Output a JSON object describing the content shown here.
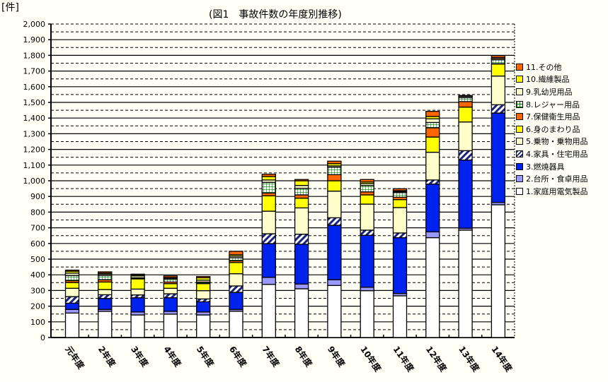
{
  "chart_data": {
    "type": "bar",
    "stacked": true,
    "title": "(図1　事故件数の年度別推移)",
    "ylabel": "[件]",
    "xlabel": "",
    "ylim": [
      0,
      2000
    ],
    "yticks": [
      "0",
      "100",
      "200",
      "300",
      "400",
      "500",
      "600",
      "700",
      "800",
      "900",
      "1,000",
      "1,100",
      "1,200",
      "1,300",
      "1,400",
      "1,500",
      "1,600",
      "1,700",
      "1,800",
      "1,900",
      "2,000"
    ],
    "grid": true,
    "legend_position": "right",
    "categories": [
      "元年度",
      "2年度",
      "3年度",
      "4年度",
      "5年度",
      "6年度",
      "7年度",
      "8年度",
      "9年度",
      "10年度",
      "11年度",
      "12年度",
      "13年度",
      "14年度"
    ],
    "series": [
      {
        "name": "1.家庭用電気製品",
        "color": "#ffffff",
        "pattern": "solid",
        "values": [
          156,
          167,
          144,
          149,
          144,
          168,
          339,
          311,
          332,
          299,
          266,
          637,
          685,
          847
        ]
      },
      {
        "name": "2.台所・食卓用品",
        "color": "#9999ff",
        "pattern": "solid",
        "values": [
          23,
          12,
          19,
          18,
          19,
          11,
          45,
          30,
          37,
          22,
          15,
          37,
          12,
          15
        ]
      },
      {
        "name": "3.燃焼器具",
        "color": "#0022ee",
        "pattern": "solid",
        "values": [
          40,
          70,
          91,
          87,
          65,
          109,
          215,
          254,
          347,
          331,
          356,
          305,
          435,
          570
        ]
      },
      {
        "name": "4.家具・住宅用品",
        "color": "#1a237e",
        "pattern": "hatch",
        "values": [
          42,
          24,
          18,
          25,
          18,
          41,
          63,
          64,
          48,
          33,
          30,
          26,
          60,
          53
        ]
      },
      {
        "name": "5.乗物・乗物用品",
        "color": "#ffffcc",
        "pattern": "solid",
        "values": [
          53,
          33,
          37,
          35,
          53,
          78,
          144,
          168,
          170,
          166,
          162,
          177,
          183,
          183
        ]
      },
      {
        "name": "6.身のまわり品",
        "color": "#ffff00",
        "pattern": "solid",
        "values": [
          37,
          48,
          65,
          30,
          45,
          72,
          98,
          62,
          66,
          59,
          51,
          97,
          95,
          77
        ]
      },
      {
        "name": "7.保健衛生用品",
        "color": "#ff6600",
        "pattern": "solid",
        "values": [
          12,
          15,
          3,
          10,
          2,
          11,
          18,
          21,
          39,
          19,
          15,
          59,
          35,
          2
        ]
      },
      {
        "name": "8.レジャー用品",
        "color": "#008000",
        "pattern": "grid",
        "values": [
          33,
          27,
          4,
          20,
          8,
          19,
          68,
          42,
          48,
          41,
          30,
          34,
          25,
          25
        ]
      },
      {
        "name": "9.乳幼児用品",
        "color": "#ffffcc",
        "pattern": "solid",
        "values": [
          15,
          8,
          12,
          4,
          12,
          10,
          15,
          18,
          8,
          12,
          6,
          23,
          8,
          8
        ]
      },
      {
        "name": "10.繊維製品",
        "color": "#ffff00",
        "pattern": "solid",
        "values": [
          12,
          7,
          7,
          5,
          15,
          9,
          22,
          30,
          14,
          10,
          6,
          15,
          2,
          5
        ]
      },
      {
        "name": "11.その他",
        "color": "#ff6600",
        "pattern": "solid",
        "values": [
          7,
          8,
          4,
          10,
          8,
          22,
          15,
          8,
          16,
          16,
          12,
          33,
          4,
          13
        ]
      }
    ]
  }
}
